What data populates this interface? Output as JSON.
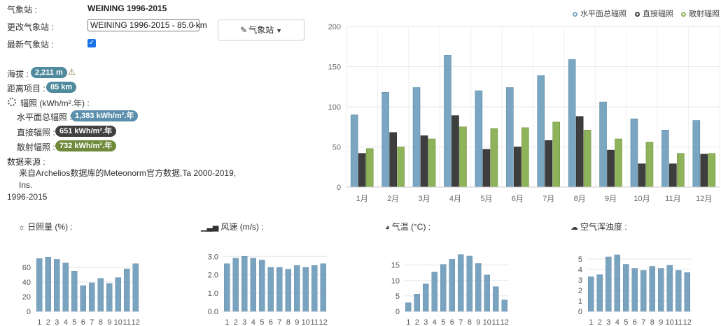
{
  "station": {
    "label": "气象站 :",
    "name": "WEINING 1996-2015",
    "change_label": "更改气象站 :",
    "select_value": "WEINING 1996-2015 - 85.0 km",
    "latest_label": "最新气象站 :",
    "latest_checked": true,
    "button_label": "气象站"
  },
  "info": {
    "altitude_label": "海拔 :",
    "altitude_value": "2,211 m",
    "distance_label": "距离项目 :",
    "distance_value": "85 km",
    "irradiation_label": "辐照 (kWh/m².年) :",
    "ghi_label": "水平面总辐照 :",
    "ghi_value": "1,383 kWh/m².年",
    "dni_label": "直接辐照 :",
    "dni_value": "651 kWh/m².年",
    "dhi_label": "散射辐照 :",
    "dhi_value": "732 kWh/m².年",
    "source_label": "数据来源 :",
    "source_line1": "来自Archelios数据库的Meteonorm官方数据,Ta 2000-2019, Ins.",
    "source_line2": "1996-2015"
  },
  "colors": {
    "ghi": "#7ba6c2",
    "dni": "#3e3e3e",
    "dhi": "#8fb35a",
    "mini": "#7aa3c0",
    "grid": "#e6e6e6"
  },
  "chart_data": [
    {
      "type": "bar",
      "title": "",
      "categories": [
        "1月",
        "2月",
        "3月",
        "4月",
        "5月",
        "6月",
        "7月",
        "8月",
        "9月",
        "10月",
        "11月",
        "12月"
      ],
      "series": [
        {
          "name": "水平面总辐照",
          "values": [
            90,
            118,
            124,
            164,
            120,
            124,
            139,
            159,
            106,
            85,
            71,
            83
          ]
        },
        {
          "name": "直接辐照",
          "values": [
            42,
            68,
            64,
            89,
            47,
            50,
            58,
            88,
            46,
            29,
            29,
            41
          ]
        },
        {
          "name": "散射辐照",
          "values": [
            48,
            50,
            60,
            75,
            73,
            74,
            81,
            71,
            60,
            56,
            42,
            42
          ]
        }
      ],
      "ylim": [
        0,
        200
      ],
      "yticks": [
        "0",
        "50",
        "100",
        "150",
        "200"
      ],
      "grid": true,
      "legend": "top-right"
    },
    {
      "type": "bar",
      "title": "日照量 (%) :",
      "categories": [
        "1",
        "2",
        "3",
        "4",
        "5",
        "6",
        "7",
        "8",
        "9",
        "10",
        "11",
        "12"
      ],
      "values": [
        72,
        74,
        71,
        66,
        55,
        35,
        39,
        45,
        38,
        46,
        58,
        65
      ],
      "ylim": [
        0,
        80
      ],
      "yticks": [
        "0",
        "20",
        "40",
        "60"
      ]
    },
    {
      "type": "bar",
      "title": "风速 (m/s) :",
      "categories": [
        "1",
        "2",
        "3",
        "4",
        "5",
        "6",
        "7",
        "8",
        "9",
        "10",
        "11",
        "12"
      ],
      "values": [
        2.6,
        2.9,
        3.0,
        2.9,
        2.8,
        2.4,
        2.4,
        2.3,
        2.5,
        2.4,
        2.5,
        2.6
      ],
      "ylim": [
        0,
        3.2
      ],
      "yticks": [
        "0.0",
        "1.0",
        "2.0",
        "3.0"
      ]
    },
    {
      "type": "bar",
      "title": "气温 (°C) :",
      "categories": [
        "1",
        "2",
        "3",
        "4",
        "5",
        "6",
        "7",
        "8",
        "9",
        "10",
        "11",
        "12"
      ],
      "values": [
        2.8,
        5.6,
        8.9,
        12.7,
        15.2,
        16.9,
        18.4,
        17.9,
        15.5,
        11.8,
        8.0,
        3.7
      ],
      "ylim": [
        0,
        19
      ],
      "yticks": [
        "0",
        "5",
        "10",
        "15"
      ]
    },
    {
      "type": "bar",
      "title": "空气浑浊度 :",
      "categories": [
        "1",
        "2",
        "3",
        "4",
        "5",
        "6",
        "7",
        "8",
        "9",
        "10",
        "11",
        "12"
      ],
      "values": [
        3.3,
        3.5,
        5.2,
        5.4,
        4.5,
        4.1,
        3.9,
        4.3,
        4.1,
        4.4,
        3.9,
        3.7
      ],
      "ylim": [
        0,
        5.6
      ],
      "yticks": [
        "0",
        "1",
        "2",
        "3",
        "4",
        "5"
      ]
    }
  ]
}
